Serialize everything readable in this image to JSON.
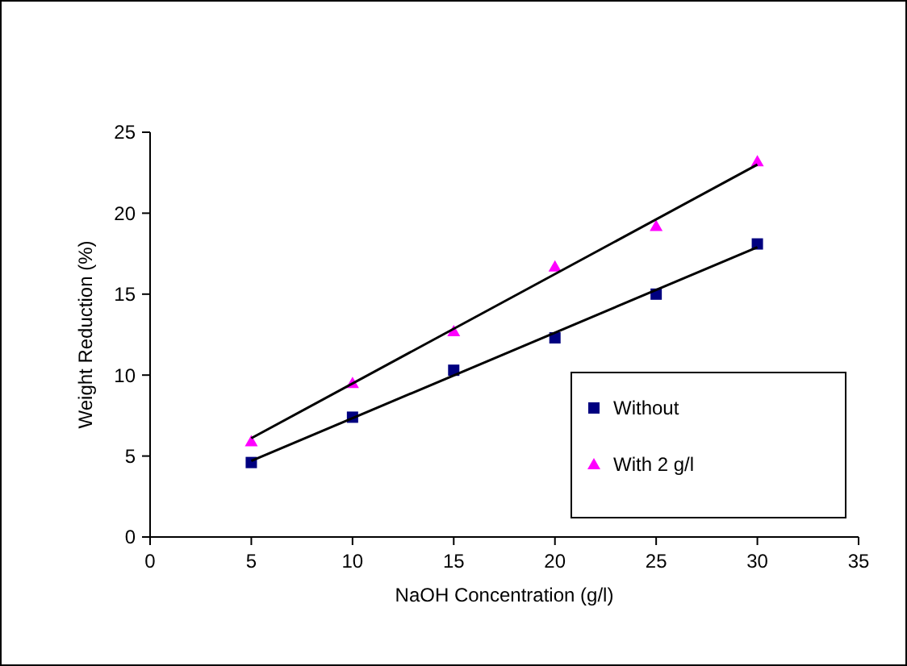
{
  "chart_data": {
    "type": "scatter",
    "xlabel": "NaOH Concentration (g/l)",
    "ylabel": "Weight Reduction (%)",
    "xlim": [
      0,
      35
    ],
    "xticks": [
      0,
      5,
      10,
      15,
      20,
      25,
      30,
      35
    ],
    "ylim": [
      0,
      25
    ],
    "yticks": [
      0,
      5,
      10,
      15,
      20,
      25
    ],
    "legend": "bottom right",
    "grid": false,
    "series": [
      {
        "name": "Without",
        "color": "#000080",
        "marker": "square",
        "x": [
          5,
          10,
          15,
          20,
          25,
          30
        ],
        "values": [
          4.6,
          7.4,
          10.3,
          12.3,
          15.0,
          18.1
        ]
      },
      {
        "name": "With 2 g/l",
        "color": "#ff00ff",
        "marker": "triangle",
        "x": [
          5,
          10,
          15,
          20,
          25,
          30
        ],
        "values": [
          5.9,
          9.5,
          12.7,
          16.7,
          19.2,
          23.2
        ]
      },
      {
        "type": "line",
        "color": "#000000",
        "marker": "none",
        "x": [
          5,
          30
        ],
        "values": [
          4.7,
          17.9
        ]
      },
      {
        "type": "line",
        "color": "#000000",
        "marker": "none",
        "x": [
          5,
          30
        ],
        "values": [
          6.1,
          23.0
        ]
      }
    ]
  }
}
